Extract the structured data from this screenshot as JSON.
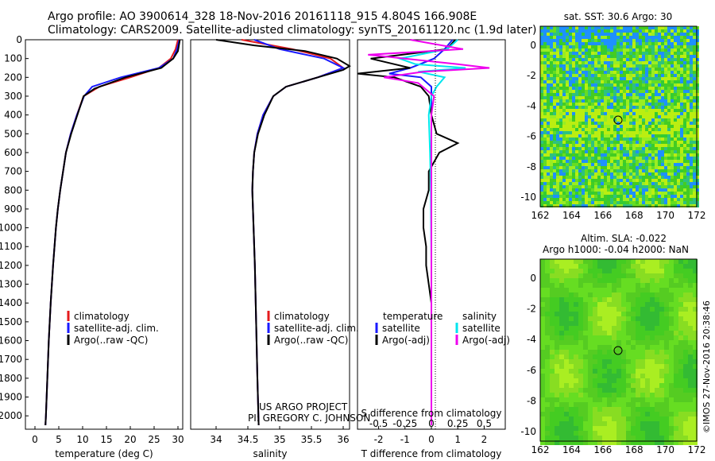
{
  "header": {
    "line1": "Argo profile: AO 3900614_328 18-Nov-2016 20161118_915 4.804S 166.908E",
    "line2": "Climatology: CARS2009. Satellite-adjusted climatology: synTS_20161120.nc (1.9d later)"
  },
  "credits": {
    "project": "US ARGO PROJECT",
    "pi": "PI: GREGORY C. JOHNSON",
    "imos": "©IMOS 27-Nov-2016 20:38:46"
  },
  "colors": {
    "climatology": "#e41a1c",
    "satellite": "#1a1aff",
    "argo": "#000000",
    "sal_satellite": "#00e5ee",
    "sal_argo": "#ee00ee"
  },
  "map_sst": {
    "title": "sat. SST: 30.6  Argo: 30",
    "xticks": [
      "162",
      "164",
      "166",
      "168",
      "170",
      "172"
    ],
    "yticks": [
      "0",
      "-2",
      "-4",
      "-6",
      "-8",
      "-10"
    ]
  },
  "map_sla": {
    "title1": "Altim. SLA: -0.022",
    "title2": "Argo h1000: -0.04 h2000: NaN",
    "xticks": [
      "162",
      "164",
      "166",
      "168",
      "170",
      "172"
    ],
    "yticks": [
      "0",
      "-2",
      "-4",
      "-6",
      "-8",
      "-10"
    ]
  },
  "chart_data": [
    {
      "type": "line",
      "xlabel": "temperature (deg C)",
      "ylabel": "",
      "xlim": [
        -2,
        31
      ],
      "ylim": [
        2050,
        0
      ],
      "xticks": [
        "0",
        "5",
        "10",
        "15",
        "20",
        "25",
        "30"
      ],
      "yticks": [
        "0",
        "100",
        "200",
        "300",
        "400",
        "500",
        "600",
        "700",
        "800",
        "900",
        "1000",
        "1100",
        "1200",
        "1300",
        "1400",
        "1500",
        "1600",
        "1700",
        "1800",
        "1900",
        "2000"
      ],
      "legend": [
        "climatology",
        "satellite-adj. clim.",
        "Argo(..raw -QC)"
      ],
      "series": [
        {
          "name": "climatology",
          "depth": [
            0,
            50,
            100,
            150,
            200,
            250,
            300,
            400,
            500,
            600,
            700,
            800,
            900,
            1000,
            1200,
            1400,
            1600,
            1800,
            2000,
            2050
          ],
          "values": [
            30,
            29.5,
            28.5,
            26,
            20,
            13.5,
            10.2,
            8.8,
            7.5,
            6.5,
            5.9,
            5.3,
            4.8,
            4.4,
            3.8,
            3.3,
            2.9,
            2.6,
            2.3,
            2.2
          ]
        },
        {
          "name": "satellite-adj. clim.",
          "depth": [
            0,
            50,
            100,
            150,
            200,
            250,
            300,
            400,
            500,
            600,
            700,
            800,
            900,
            1000,
            1200,
            1400,
            1600,
            1800,
            2000,
            2050
          ],
          "values": [
            30.3,
            29.8,
            29,
            26,
            18,
            12,
            10.3,
            8.8,
            7.5,
            6.5,
            5.9,
            5.3,
            4.8,
            4.4,
            3.8,
            3.3,
            2.9,
            2.6,
            2.3,
            2.2
          ]
        },
        {
          "name": "Argo(..raw -QC)",
          "depth": [
            0,
            60,
            100,
            150,
            200,
            260,
            300,
            400,
            500,
            600,
            700,
            800,
            900,
            1000,
            1200,
            1400,
            1600,
            1800,
            2000,
            2050
          ],
          "values": [
            30.4,
            30,
            29,
            26.5,
            19,
            12.5,
            10.2,
            8.9,
            7.6,
            6.5,
            5.9,
            5.3,
            4.8,
            4.4,
            3.8,
            3.3,
            2.9,
            2.6,
            2.3,
            2.2
          ]
        }
      ]
    },
    {
      "type": "line",
      "xlabel": "salinity",
      "xlim": [
        33.6,
        36.1
      ],
      "ylim": [
        2050,
        0
      ],
      "xticks": [
        "34",
        "34.5",
        "35",
        "35.5",
        "36"
      ],
      "legend": [
        "climatology",
        "satellite-adj. clim.",
        "Argo(..raw -QC)"
      ],
      "series": [
        {
          "name": "climatology",
          "depth": [
            0,
            50,
            100,
            150,
            200,
            250,
            300,
            400,
            500,
            600,
            700,
            800,
            900,
            1000,
            1200,
            1500,
            1800,
            2050
          ],
          "values": [
            34.4,
            35.2,
            35.8,
            36.0,
            35.6,
            35.1,
            34.9,
            34.74,
            34.65,
            34.6,
            34.58,
            34.57,
            34.58,
            34.59,
            34.61,
            34.63,
            34.65,
            34.67
          ]
        },
        {
          "name": "satellite-adj. clim.",
          "depth": [
            0,
            50,
            100,
            150,
            200,
            250,
            300,
            400,
            500,
            600,
            700,
            800,
            900,
            1000,
            1200,
            1500,
            1800,
            2050
          ],
          "values": [
            34.6,
            35.0,
            35.7,
            36.0,
            35.6,
            35.1,
            34.9,
            34.74,
            34.65,
            34.6,
            34.58,
            34.57,
            34.58,
            34.59,
            34.61,
            34.63,
            34.65,
            34.67
          ]
        },
        {
          "name": "Argo(..raw -QC)",
          "depth": [
            0,
            30,
            60,
            100,
            140,
            160,
            200,
            250,
            300,
            400,
            500,
            600,
            700,
            800,
            900,
            1000,
            1200,
            1500,
            1800,
            2050
          ],
          "values": [
            34.0,
            34.6,
            35.4,
            35.9,
            36.1,
            36.0,
            35.6,
            35.1,
            34.9,
            34.76,
            34.66,
            34.6,
            34.58,
            34.57,
            34.58,
            34.59,
            34.61,
            34.63,
            34.65,
            34.67
          ]
        }
      ]
    },
    {
      "type": "line",
      "xlabel": "T difference from climatology",
      "xlabel2": "S difference from climatology",
      "xlim": [
        -2.8,
        2.8
      ],
      "ylim": [
        2050,
        0
      ],
      "xticks": [
        "-2",
        "-1",
        "0",
        "1",
        "2"
      ],
      "xticks2": [
        "-0.5",
        "-0.25",
        "0",
        "0.25",
        "0.5"
      ],
      "legend_titles": [
        "temperature",
        "salinity"
      ],
      "legend": [
        "satellite",
        "Argo(-adj)",
        "satellite",
        "Argo(-adj)"
      ],
      "series": [
        {
          "name": "satellite",
          "depth": [
            0,
            50,
            100,
            150,
            180,
            200,
            250,
            300,
            400,
            500,
            700,
            1000,
            1500,
            2050
          ],
          "values": [
            0.8,
            0.5,
            0.1,
            -0.8,
            -1.6,
            -0.4,
            0,
            0,
            0,
            0,
            0,
            0,
            0,
            0
          ]
        },
        {
          "name": "Argo(-adj)",
          "depth": [
            0,
            50,
            100,
            150,
            180,
            200,
            250,
            300,
            400,
            500,
            550,
            600,
            700,
            800,
            900,
            1000,
            1100,
            1200,
            1300,
            1400,
            1500,
            1800,
            2050
          ],
          "values": [
            0.9,
            0.6,
            -2.3,
            -0.8,
            -2.8,
            -1.4,
            -0.4,
            -0.1,
            0,
            0.2,
            1.0,
            0.3,
            -0.1,
            -0.1,
            -0.3,
            -0.3,
            -0.2,
            -0.2,
            -0.1,
            0,
            0,
            0,
            0
          ]
        },
        {
          "name": "satellite",
          "depth": [
            0,
            50,
            100,
            130,
            150,
            170,
            200,
            250,
            300,
            400,
            600,
            800,
            1200,
            1600,
            2050
          ],
          "values": [
            1.0,
            0.6,
            -1.2,
            -0.6,
            1.3,
            -0.5,
            0.5,
            0.2,
            0,
            -0.1,
            -0.05,
            -0.02,
            0,
            0,
            0
          ]
        },
        {
          "name": "Argo(-adj)",
          "depth": [
            0,
            50,
            80,
            100,
            130,
            150,
            170,
            200,
            230,
            300,
            400,
            600,
            2050
          ],
          "values": [
            -0.8,
            1.2,
            -2.4,
            -1.0,
            1.0,
            2.2,
            -0.3,
            -1.8,
            -0.5,
            0.1,
            0,
            0,
            0
          ]
        }
      ]
    }
  ]
}
